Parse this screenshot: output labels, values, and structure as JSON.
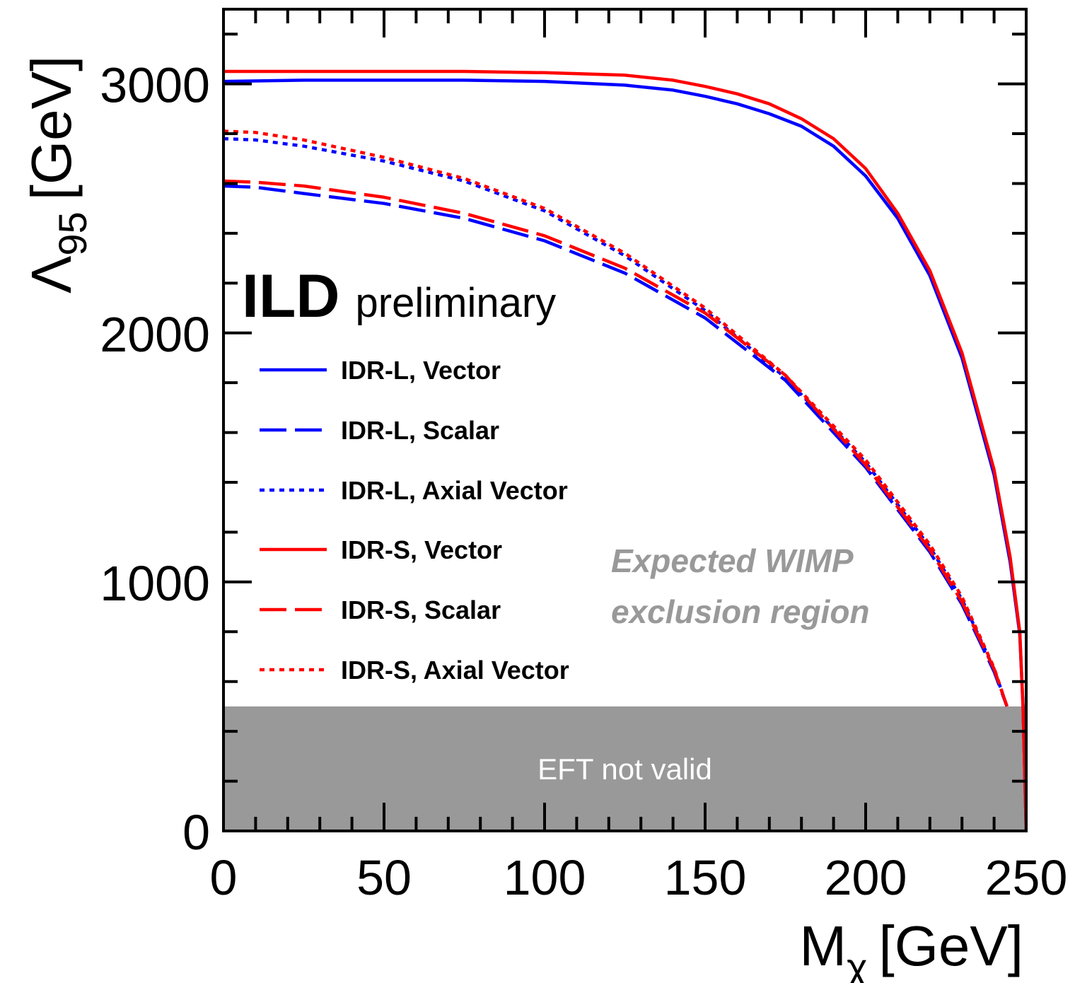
{
  "chart_data": {
    "type": "line",
    "xlabel": {
      "main": "M",
      "sub": "χ",
      "unit": "[GeV]"
    },
    "ylabel": {
      "main": "Λ",
      "sub": "95",
      "unit": "[GeV]"
    },
    "xlim": [
      0,
      250
    ],
    "ylim": [
      0,
      3300
    ],
    "x_ticks": [
      0,
      50,
      100,
      150,
      200,
      250
    ],
    "y_ticks": [
      0,
      1000,
      2000,
      3000
    ],
    "x_tick_labels": [
      "0",
      "50",
      "100",
      "150",
      "200",
      "250"
    ],
    "y_tick_labels": [
      "0",
      "1000",
      "2000",
      "3000"
    ],
    "brand": {
      "bold": "ILD",
      "normal": "preliminary"
    },
    "annotation": {
      "line1": "Expected WIMP",
      "line2": "exclusion region",
      "color": "#999999"
    },
    "excluded_band": {
      "label": "EFT not valid",
      "ymin": 0,
      "ymax": 500,
      "color": "#999999"
    },
    "legend_position": "left",
    "series": [
      {
        "name": "IDR-L, Vector",
        "color": "#0000ff",
        "style": "solid",
        "x": [
          0,
          25,
          50,
          75,
          100,
          125,
          140,
          150,
          160,
          170,
          180,
          190,
          200,
          210,
          220,
          230,
          240,
          245,
          248,
          249,
          250
        ],
        "y": [
          3010,
          3015,
          3015,
          3015,
          3010,
          2995,
          2975,
          2950,
          2920,
          2880,
          2830,
          2750,
          2630,
          2460,
          2230,
          1900,
          1430,
          1080,
          790,
          500,
          0
        ]
      },
      {
        "name": "IDR-L, Scalar",
        "color": "#0000ff",
        "style": "dashed",
        "x": [
          0,
          10,
          25,
          50,
          75,
          100,
          125,
          150,
          175,
          200,
          220,
          230,
          240,
          244
        ],
        "y": [
          2590,
          2585,
          2560,
          2520,
          2460,
          2370,
          2240,
          2060,
          1810,
          1460,
          1120,
          910,
          640,
          500
        ]
      },
      {
        "name": "IDR-L, Axial Vector",
        "color": "#0000ff",
        "style": "dotted",
        "x": [
          0,
          10,
          25,
          50,
          75,
          100,
          125,
          150,
          175,
          200,
          220,
          230,
          240,
          244
        ],
        "y": [
          2780,
          2775,
          2750,
          2690,
          2610,
          2490,
          2310,
          2090,
          1820,
          1480,
          1140,
          930,
          650,
          500
        ]
      },
      {
        "name": "IDR-S, Vector",
        "color": "#ff0000",
        "style": "solid",
        "x": [
          0,
          25,
          50,
          75,
          100,
          125,
          140,
          150,
          160,
          170,
          180,
          190,
          200,
          210,
          220,
          230,
          240,
          245,
          248,
          249,
          250
        ],
        "y": [
          3050,
          3050,
          3050,
          3050,
          3045,
          3035,
          3015,
          2990,
          2960,
          2920,
          2860,
          2780,
          2660,
          2480,
          2250,
          1920,
          1450,
          1100,
          800,
          500,
          0
        ]
      },
      {
        "name": "IDR-S, Scalar",
        "color": "#ff0000",
        "style": "dashed",
        "x": [
          0,
          10,
          25,
          50,
          75,
          100,
          125,
          150,
          175,
          200,
          220,
          230,
          240,
          244
        ],
        "y": [
          2610,
          2605,
          2590,
          2545,
          2480,
          2390,
          2260,
          2080,
          1830,
          1470,
          1130,
          920,
          650,
          500
        ]
      },
      {
        "name": "IDR-S, Axial Vector",
        "color": "#ff0000",
        "style": "dotted",
        "x": [
          0,
          10,
          25,
          50,
          75,
          100,
          125,
          150,
          175,
          200,
          220,
          230,
          240,
          244
        ],
        "y": [
          2810,
          2805,
          2775,
          2705,
          2620,
          2500,
          2320,
          2100,
          1830,
          1490,
          1150,
          940,
          655,
          500
        ]
      }
    ]
  }
}
